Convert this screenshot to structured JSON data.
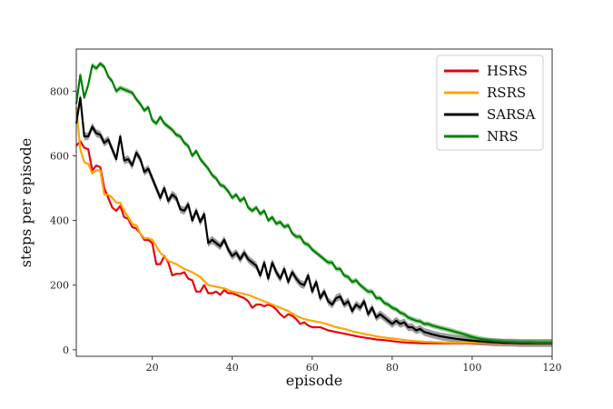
{
  "chart_data": {
    "type": "line",
    "xlabel": "episode",
    "ylabel": "steps per episode",
    "xlim": [
      1,
      120
    ],
    "ylim": [
      -20,
      930
    ],
    "xticks": [
      20,
      40,
      60,
      80,
      100,
      120
    ],
    "yticks": [
      0,
      200,
      400,
      600,
      800
    ],
    "grid": false,
    "legend_position": "top-right",
    "series": [
      {
        "name": "HSRS",
        "color": "#e8000b",
        "band": false,
        "x": [
          1,
          2,
          3,
          4,
          5,
          6,
          7,
          8,
          9,
          10,
          11,
          12,
          13,
          14,
          15,
          16,
          17,
          18,
          19,
          20,
          21,
          22,
          23,
          24,
          25,
          26,
          27,
          28,
          29,
          30,
          31,
          32,
          33,
          34,
          35,
          36,
          37,
          38,
          39,
          40,
          41,
          42,
          43,
          44,
          45,
          46,
          47,
          48,
          49,
          50,
          51,
          52,
          53,
          54,
          55,
          56,
          57,
          58,
          59,
          60,
          62,
          64,
          66,
          68,
          70,
          72,
          74,
          76,
          78,
          80,
          82,
          84,
          86,
          88,
          90,
          95,
          100,
          105,
          110,
          115,
          120
        ],
        "y": [
          630,
          645,
          625,
          620,
          555,
          570,
          565,
          500,
          470,
          440,
          430,
          445,
          410,
          405,
          380,
          375,
          360,
          340,
          340,
          330,
          265,
          265,
          290,
          270,
          230,
          235,
          235,
          240,
          220,
          215,
          180,
          180,
          200,
          175,
          175,
          180,
          170,
          185,
          175,
          175,
          170,
          165,
          160,
          150,
          130,
          140,
          140,
          135,
          140,
          135,
          125,
          110,
          100,
          110,
          105,
          95,
          80,
          85,
          75,
          70,
          70,
          60,
          55,
          50,
          45,
          40,
          36,
          32,
          30,
          27,
          24,
          22,
          21,
          20,
          20,
          20,
          20,
          20,
          20,
          20,
          20
        ]
      },
      {
        "name": "RSRS",
        "color": "#ffa500",
        "band": false,
        "x": [
          1,
          2,
          3,
          4,
          5,
          6,
          7,
          8,
          9,
          10,
          11,
          12,
          13,
          14,
          15,
          16,
          17,
          18,
          19,
          20,
          22,
          24,
          26,
          28,
          30,
          32,
          34,
          36,
          38,
          40,
          42,
          44,
          46,
          48,
          50,
          52,
          54,
          56,
          58,
          60,
          62,
          64,
          66,
          68,
          70,
          72,
          74,
          76,
          78,
          80,
          82,
          84,
          86,
          88,
          90,
          95,
          100,
          105,
          110,
          115,
          120
        ],
        "y": [
          750,
          620,
          580,
          575,
          545,
          555,
          555,
          480,
          480,
          470,
          455,
          455,
          430,
          410,
          390,
          385,
          360,
          345,
          345,
          340,
          300,
          275,
          265,
          250,
          240,
          225,
          200,
          195,
          190,
          180,
          175,
          170,
          160,
          150,
          140,
          130,
          120,
          105,
          95,
          90,
          85,
          78,
          70,
          65,
          57,
          52,
          47,
          42,
          38,
          35,
          32,
          29,
          27,
          25,
          24,
          22,
          22,
          21,
          21,
          21,
          21
        ]
      },
      {
        "name": "SARSA",
        "color": "#000000",
        "band": true,
        "x": [
          1,
          2,
          3,
          4,
          5,
          6,
          7,
          8,
          9,
          10,
          11,
          12,
          13,
          14,
          15,
          16,
          17,
          18,
          19,
          20,
          21,
          22,
          23,
          24,
          25,
          26,
          27,
          28,
          29,
          30,
          31,
          32,
          33,
          34,
          35,
          36,
          37,
          38,
          39,
          40,
          41,
          42,
          43,
          44,
          45,
          46,
          47,
          48,
          49,
          50,
          51,
          52,
          53,
          54,
          55,
          56,
          57,
          58,
          59,
          60,
          61,
          62,
          63,
          64,
          65,
          66,
          67,
          68,
          69,
          70,
          71,
          72,
          73,
          74,
          75,
          76,
          77,
          78,
          79,
          80,
          81,
          82,
          83,
          84,
          85,
          86,
          87,
          88,
          89,
          90,
          92,
          94,
          96,
          98,
          100,
          102,
          104,
          106,
          108,
          110,
          112,
          114,
          116,
          118,
          120
        ],
        "y": [
          700,
          780,
          660,
          660,
          690,
          670,
          665,
          640,
          650,
          620,
          590,
          660,
          585,
          590,
          570,
          610,
          590,
          550,
          560,
          530,
          500,
          470,
          500,
          460,
          480,
          470,
          435,
          430,
          450,
          400,
          430,
          395,
          420,
          330,
          340,
          330,
          320,
          340,
          310,
          290,
          300,
          280,
          300,
          280,
          270,
          260,
          230,
          270,
          220,
          270,
          240,
          220,
          250,
          210,
          240,
          220,
          205,
          200,
          230,
          180,
          210,
          160,
          180,
          150,
          140,
          160,
          165,
          140,
          150,
          120,
          140,
          130,
          150,
          110,
          130,
          100,
          110,
          100,
          90,
          80,
          90,
          80,
          85,
          70,
          70,
          60,
          65,
          55,
          52,
          48,
          42,
          38,
          34,
          31,
          28,
          26,
          24,
          23,
          22,
          22,
          21,
          21,
          21,
          21,
          21
        ],
        "band_halfwidth": 12
      },
      {
        "name": "NRS",
        "color": "#008000",
        "band": true,
        "x": [
          1,
          2,
          3,
          4,
          5,
          6,
          7,
          8,
          9,
          10,
          11,
          12,
          13,
          14,
          15,
          16,
          17,
          18,
          19,
          20,
          21,
          22,
          23,
          24,
          25,
          26,
          27,
          28,
          29,
          30,
          31,
          32,
          33,
          34,
          35,
          36,
          37,
          38,
          39,
          40,
          41,
          42,
          43,
          44,
          45,
          46,
          47,
          48,
          49,
          50,
          51,
          52,
          53,
          54,
          55,
          56,
          57,
          58,
          59,
          60,
          61,
          62,
          63,
          64,
          65,
          66,
          67,
          68,
          69,
          70,
          71,
          72,
          73,
          74,
          75,
          76,
          77,
          78,
          79,
          80,
          81,
          82,
          83,
          84,
          85,
          86,
          87,
          88,
          89,
          90,
          92,
          94,
          96,
          98,
          100,
          102,
          104,
          106,
          108,
          110,
          112,
          114,
          116,
          118,
          120
        ],
        "y": [
          760,
          850,
          780,
          820,
          880,
          870,
          885,
          875,
          845,
          830,
          800,
          810,
          805,
          800,
          795,
          775,
          760,
          740,
          750,
          710,
          700,
          720,
          700,
          690,
          680,
          665,
          660,
          640,
          630,
          600,
          615,
          590,
          575,
          560,
          540,
          530,
          510,
          505,
          490,
          470,
          480,
          460,
          470,
          440,
          430,
          440,
          420,
          430,
          400,
          410,
          390,
          395,
          380,
          385,
          360,
          350,
          350,
          330,
          325,
          310,
          300,
          290,
          280,
          270,
          270,
          250,
          250,
          230,
          225,
          210,
          215,
          200,
          190,
          180,
          180,
          160,
          160,
          145,
          140,
          130,
          125,
          115,
          110,
          100,
          95,
          90,
          88,
          80,
          80,
          75,
          68,
          62,
          55,
          48,
          40,
          34,
          30,
          27,
          25,
          24,
          23,
          23,
          22,
          22,
          22
        ],
        "band_halfwidth": 8
      }
    ]
  }
}
